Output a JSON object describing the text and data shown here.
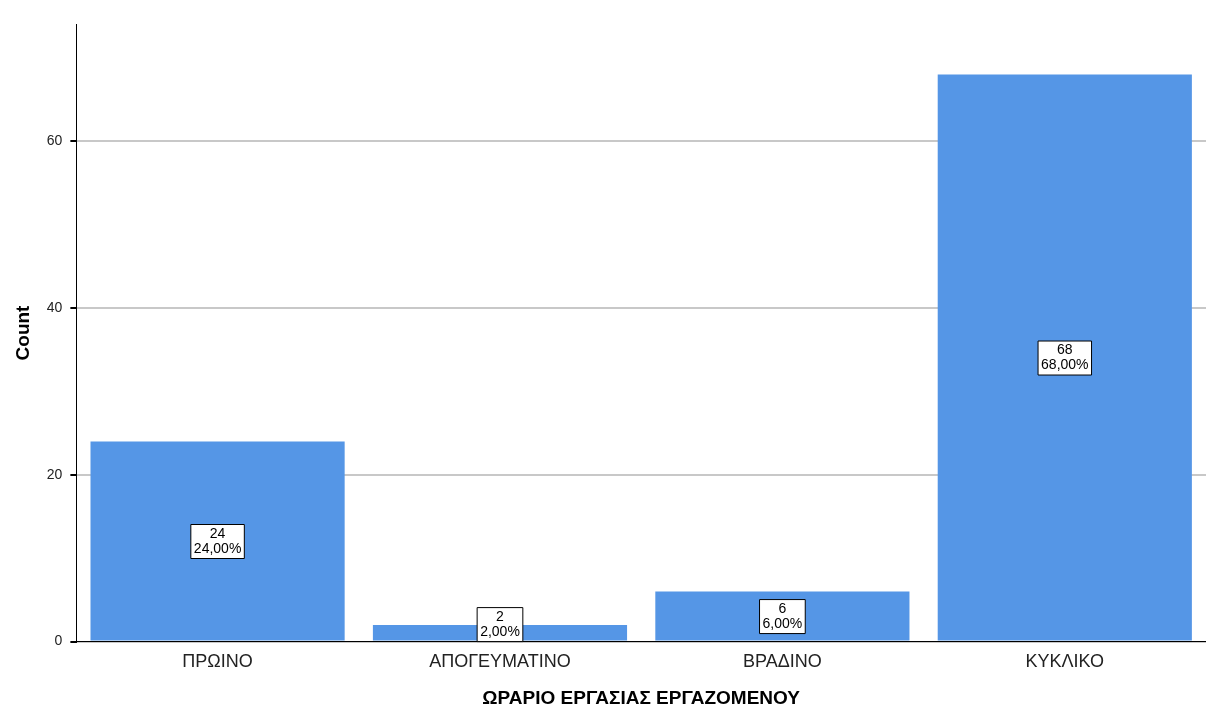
{
  "chart_data": {
    "type": "bar",
    "xlabel": "ΩΡΑΡΙΟ ΕΡΓΑΣΙΑΣ ΕΡΓΑΖΟΜΕΝΟΥ",
    "ylabel": "Count",
    "categories": [
      "ΠΡΩΙΝΟ",
      "ΑΠΟΓΕΥΜΑΤΙΝΟ",
      "ΒΡΑΔΙΝΟ",
      "ΚΥΚΛΙΚΟ"
    ],
    "values": [
      24,
      2,
      6,
      68
    ],
    "value_labels": [
      "24\n24,00%",
      "2\n2,00%",
      "6\n6,00%",
      "68\n68,00%"
    ],
    "color": "#5596e6",
    "ylim": [
      0,
      74
    ],
    "yticks": [
      0,
      20,
      40,
      60
    ],
    "grid": "y",
    "legend": false
  }
}
